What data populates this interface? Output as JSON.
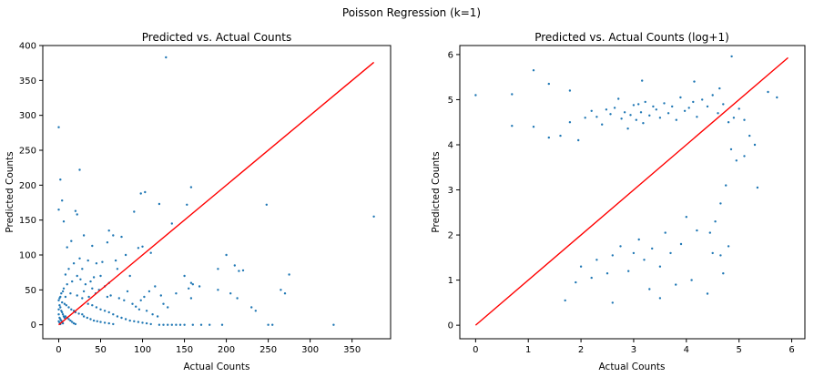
{
  "suptitle": "Poisson Regression (k=1)",
  "chart_data": [
    {
      "type": "scatter",
      "title": "Predicted vs. Actual Counts",
      "xlabel": "Actual Counts",
      "ylabel": "Predicted Counts",
      "xlim": [
        -19,
        396
      ],
      "ylim": [
        -20,
        400
      ],
      "xticks": [
        0,
        50,
        100,
        150,
        200,
        250,
        300,
        350
      ],
      "yticks": [
        0,
        50,
        100,
        150,
        200,
        250,
        300,
        350,
        400
      ],
      "marker_color": "#1f77b4",
      "line_color": "#ff0000",
      "reference_line": {
        "x": [
          0,
          376
        ],
        "y": [
          0,
          376
        ]
      },
      "points": [
        [
          128,
          383
        ],
        [
          0,
          283
        ],
        [
          376,
          155
        ],
        [
          2,
          208
        ],
        [
          4,
          178
        ],
        [
          25,
          222
        ],
        [
          0,
          165
        ],
        [
          6,
          148
        ],
        [
          20,
          163
        ],
        [
          22,
          158
        ],
        [
          98,
          188
        ],
        [
          103,
          190
        ],
        [
          90,
          162
        ],
        [
          158,
          197
        ],
        [
          153,
          172
        ],
        [
          248,
          172
        ],
        [
          120,
          173
        ],
        [
          135,
          145
        ],
        [
          60,
          135
        ],
        [
          65,
          128
        ],
        [
          58,
          118
        ],
        [
          75,
          126
        ],
        [
          30,
          128
        ],
        [
          15,
          120
        ],
        [
          10,
          111
        ],
        [
          40,
          113
        ],
        [
          100,
          112
        ],
        [
          95,
          110
        ],
        [
          110,
          103
        ],
        [
          80,
          100
        ],
        [
          200,
          100
        ],
        [
          190,
          80
        ],
        [
          210,
          85
        ],
        [
          215,
          77
        ],
        [
          220,
          78
        ],
        [
          275,
          72
        ],
        [
          85,
          70
        ],
        [
          150,
          70
        ],
        [
          158,
          60
        ],
        [
          160,
          58
        ],
        [
          168,
          55
        ],
        [
          190,
          50
        ],
        [
          155,
          52
        ],
        [
          140,
          45
        ],
        [
          158,
          38
        ],
        [
          205,
          45
        ],
        [
          213,
          38
        ],
        [
          230,
          25
        ],
        [
          235,
          20
        ],
        [
          265,
          50
        ],
        [
          270,
          45
        ],
        [
          52,
          90
        ],
        [
          45,
          88
        ],
        [
          35,
          92
        ],
        [
          25,
          95
        ],
        [
          18,
          88
        ],
        [
          28,
          80
        ],
        [
          12,
          80
        ],
        [
          8,
          72
        ],
        [
          70,
          80
        ],
        [
          68,
          92
        ],
        [
          50,
          70
        ],
        [
          42,
          68
        ],
        [
          60,
          60
        ],
        [
          55,
          55
        ],
        [
          48,
          50
        ],
        [
          38,
          62
        ],
        [
          32,
          58
        ],
        [
          26,
          65
        ],
        [
          22,
          70
        ],
        [
          16,
          62
        ],
        [
          10,
          58
        ],
        [
          6,
          52
        ],
        [
          5,
          48
        ],
        [
          3,
          45
        ],
        [
          2,
          40
        ],
        [
          1,
          38
        ],
        [
          0,
          35
        ],
        [
          4,
          32
        ],
        [
          7,
          30
        ],
        [
          9,
          28
        ],
        [
          12,
          25
        ],
        [
          15,
          22
        ],
        [
          18,
          20
        ],
        [
          20,
          18
        ],
        [
          24,
          16
        ],
        [
          28,
          15
        ],
        [
          30,
          12
        ],
        [
          34,
          10
        ],
        [
          38,
          8
        ],
        [
          42,
          6
        ],
        [
          46,
          5
        ],
        [
          50,
          4
        ],
        [
          55,
          3
        ],
        [
          60,
          2
        ],
        [
          65,
          1
        ],
        [
          8,
          12
        ],
        [
          10,
          10
        ],
        [
          12,
          8
        ],
        [
          14,
          6
        ],
        [
          16,
          4
        ],
        [
          18,
          2
        ],
        [
          20,
          1
        ],
        [
          3,
          20
        ],
        [
          4,
          18
        ],
        [
          5,
          15
        ],
        [
          6,
          12
        ],
        [
          7,
          10
        ],
        [
          2,
          25
        ],
        [
          1,
          28
        ],
        [
          0,
          22
        ],
        [
          0,
          15
        ],
        [
          1,
          10
        ],
        [
          2,
          8
        ],
        [
          3,
          6
        ],
        [
          4,
          4
        ],
        [
          5,
          2
        ],
        [
          0,
          5
        ],
        [
          1,
          3
        ],
        [
          2,
          1
        ],
        [
          35,
          30
        ],
        [
          40,
          28
        ],
        [
          45,
          25
        ],
        [
          50,
          22
        ],
        [
          55,
          20
        ],
        [
          60,
          18
        ],
        [
          65,
          15
        ],
        [
          70,
          12
        ],
        [
          75,
          10
        ],
        [
          80,
          8
        ],
        [
          85,
          6
        ],
        [
          90,
          5
        ],
        [
          95,
          4
        ],
        [
          100,
          3
        ],
        [
          105,
          2
        ],
        [
          110,
          1
        ],
        [
          120,
          0
        ],
        [
          125,
          0
        ],
        [
          130,
          0
        ],
        [
          135,
          0
        ],
        [
          140,
          0
        ],
        [
          145,
          0
        ],
        [
          150,
          0
        ],
        [
          160,
          0
        ],
        [
          170,
          0
        ],
        [
          180,
          0
        ],
        [
          195,
          0
        ],
        [
          250,
          0
        ],
        [
          255,
          0
        ],
        [
          328,
          0
        ],
        [
          58,
          40
        ],
        [
          62,
          42
        ],
        [
          72,
          38
        ],
        [
          78,
          35
        ],
        [
          82,
          48
        ],
        [
          88,
          30
        ],
        [
          92,
          26
        ],
        [
          96,
          22
        ],
        [
          105,
          20
        ],
        [
          112,
          15
        ],
        [
          118,
          12
        ],
        [
          125,
          30
        ],
        [
          130,
          25
        ],
        [
          122,
          42
        ],
        [
          115,
          55
        ],
        [
          108,
          48
        ],
        [
          102,
          40
        ],
        [
          98,
          35
        ],
        [
          44,
          45
        ],
        [
          36,
          40
        ],
        [
          28,
          38
        ],
        [
          22,
          42
        ],
        [
          14,
          45
        ],
        [
          8,
          40
        ],
        [
          30,
          48
        ],
        [
          40,
          52
        ]
      ]
    },
    {
      "type": "scatter",
      "title": "Predicted vs. Actual Counts (log+1)",
      "xlabel": "Actual Counts",
      "ylabel": "Predicted Counts",
      "xlim": [
        -0.3,
        6.25
      ],
      "ylim": [
        -0.3,
        6.2
      ],
      "xticks": [
        0,
        1,
        2,
        3,
        4,
        5,
        6
      ],
      "yticks": [
        0,
        1,
        2,
        3,
        4,
        5,
        6
      ],
      "marker_color": "#1f77b4",
      "line_color": "#ff0000",
      "reference_line": {
        "x": [
          0,
          5.93
        ],
        "y": [
          0,
          5.93
        ]
      },
      "points": [
        [
          0,
          5.1
        ],
        [
          0.69,
          5.12
        ],
        [
          1.1,
          5.65
        ],
        [
          1.39,
          5.35
        ],
        [
          1.79,
          5.2
        ],
        [
          4.86,
          5.96
        ],
        [
          5.72,
          5.05
        ],
        [
          5.55,
          5.17
        ],
        [
          5.35,
          3.05
        ],
        [
          3.16,
          5.42
        ],
        [
          4.15,
          5.4
        ],
        [
          4.63,
          5.25
        ],
        [
          0.69,
          4.42
        ],
        [
          1.1,
          4.4
        ],
        [
          1.39,
          4.16
        ],
        [
          1.61,
          4.2
        ],
        [
          1.79,
          4.5
        ],
        [
          1.95,
          4.1
        ],
        [
          2.08,
          4.6
        ],
        [
          2.2,
          4.75
        ],
        [
          2.3,
          4.62
        ],
        [
          2.4,
          4.45
        ],
        [
          2.48,
          4.78
        ],
        [
          2.56,
          4.68
        ],
        [
          2.64,
          4.82
        ],
        [
          2.71,
          5.02
        ],
        [
          2.77,
          4.58
        ],
        [
          2.83,
          4.72
        ],
        [
          2.89,
          4.36
        ],
        [
          2.94,
          4.66
        ],
        [
          3.0,
          4.88
        ],
        [
          3.05,
          4.55
        ],
        [
          3.09,
          4.9
        ],
        [
          3.14,
          4.72
        ],
        [
          3.18,
          4.48
        ],
        [
          3.22,
          4.95
        ],
        [
          3.3,
          4.65
        ],
        [
          3.37,
          4.85
        ],
        [
          3.43,
          4.78
        ],
        [
          3.5,
          4.6
        ],
        [
          3.58,
          4.92
        ],
        [
          3.66,
          4.7
        ],
        [
          3.73,
          4.85
        ],
        [
          3.81,
          4.55
        ],
        [
          3.89,
          5.05
        ],
        [
          3.97,
          4.75
        ],
        [
          4.05,
          4.82
        ],
        [
          4.13,
          4.95
        ],
        [
          4.2,
          4.62
        ],
        [
          4.3,
          5.0
        ],
        [
          4.4,
          4.85
        ],
        [
          4.5,
          5.1
        ],
        [
          4.6,
          4.7
        ],
        [
          4.7,
          4.9
        ],
        [
          4.8,
          4.5
        ],
        [
          4.9,
          4.6
        ],
        [
          5.0,
          4.8
        ],
        [
          5.1,
          4.55
        ],
        [
          5.2,
          4.2
        ],
        [
          5.3,
          4.0
        ],
        [
          5.1,
          3.75
        ],
        [
          4.95,
          3.65
        ],
        [
          4.85,
          3.9
        ],
        [
          4.75,
          3.1
        ],
        [
          4.65,
          2.7
        ],
        [
          4.55,
          2.3
        ],
        [
          4.45,
          2.05
        ],
        [
          4.5,
          1.6
        ],
        [
          4.65,
          1.55
        ],
        [
          4.7,
          1.15
        ],
        [
          4.8,
          1.75
        ],
        [
          4.2,
          2.1
        ],
        [
          4.0,
          2.4
        ],
        [
          3.9,
          1.8
        ],
        [
          3.7,
          1.6
        ],
        [
          3.6,
          2.05
        ],
        [
          3.5,
          1.3
        ],
        [
          3.35,
          1.7
        ],
        [
          3.2,
          1.45
        ],
        [
          3.1,
          1.9
        ],
        [
          3.0,
          1.6
        ],
        [
          2.9,
          1.2
        ],
        [
          2.75,
          1.75
        ],
        [
          2.6,
          1.55
        ],
        [
          2.5,
          1.15
        ],
        [
          2.3,
          1.45
        ],
        [
          2.2,
          1.05
        ],
        [
          2.0,
          1.3
        ],
        [
          1.9,
          0.95
        ],
        [
          3.8,
          0.9
        ],
        [
          3.3,
          0.8
        ],
        [
          4.1,
          1.0
        ],
        [
          2.6,
          0.5
        ],
        [
          3.5,
          0.6
        ],
        [
          4.4,
          0.7
        ],
        [
          1.7,
          0.55
        ]
      ]
    }
  ]
}
